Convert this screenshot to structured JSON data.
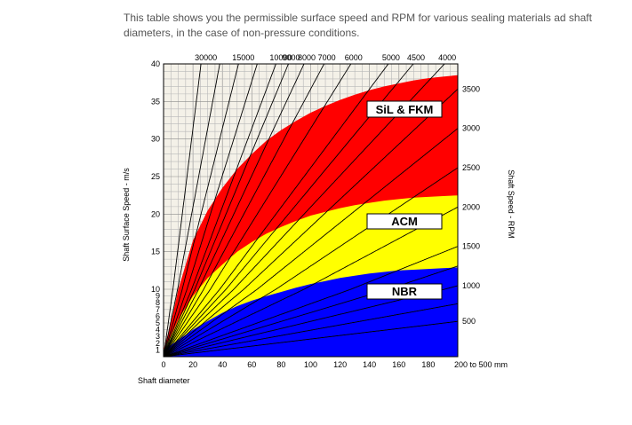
{
  "intro_text": "This table shows you the permissible surface speed and RPM for various sealing materials ad shaft diameters, in the case of non-pressure conditions.",
  "chart_data": {
    "type": "area",
    "xlabel": "Shaft diameter",
    "ylabel": "Shaft Surface Speed - m/s",
    "y2label": "Shaft Speed - RPM",
    "x_ticks": [
      "0",
      "20",
      "40",
      "60",
      "80",
      "100",
      "120",
      "140",
      "160",
      "180",
      "200 to 500 mm"
    ],
    "y_ticks": [
      {
        "label": "1",
        "value": 1
      },
      {
        "label": "2",
        "value": 2
      },
      {
        "label": "3",
        "value": 3
      },
      {
        "label": "4",
        "value": 4
      },
      {
        "label": "5",
        "value": 5
      },
      {
        "label": "6",
        "value": 6
      },
      {
        "label": "7",
        "value": 7
      },
      {
        "label": "8",
        "value": 8
      },
      {
        "label": "9",
        "value": 9
      },
      {
        "label": "10",
        "value": 10
      },
      {
        "label": "15",
        "value": 15
      },
      {
        "label": "20",
        "value": 20
      },
      {
        "label": "25",
        "value": 25
      },
      {
        "label": "30",
        "value": 30
      },
      {
        "label": "35",
        "value": 35
      },
      {
        "label": "40",
        "value": 40
      }
    ],
    "xlim": [
      0,
      200
    ],
    "ylim": [
      0,
      40
    ],
    "grid": true,
    "rpm_lines": [
      {
        "label": "30000",
        "rpm": 30000,
        "labeled": true
      },
      {
        "label": "15000",
        "rpm": 15000,
        "labeled": true
      },
      {
        "label": "10000",
        "rpm": 10000,
        "labeled": true
      },
      {
        "label": "9000",
        "rpm": 9000,
        "labeled": true
      },
      {
        "label": "8000",
        "rpm": 8000,
        "labeled": true
      },
      {
        "label": "7000",
        "rpm": 7000,
        "labeled": true
      },
      {
        "label": "6000",
        "rpm": 6000,
        "labeled": true
      },
      {
        "label": "5000",
        "rpm": 5000,
        "labeled": true
      },
      {
        "label": "4500",
        "rpm": 4500,
        "labeled": true
      },
      {
        "label": "4000",
        "rpm": 4000,
        "labeled": true
      },
      {
        "label": "3500",
        "rpm": 3500,
        "labeled": true
      },
      {
        "label": "3000",
        "rpm": 3000,
        "labeled": true
      },
      {
        "label": "2500",
        "rpm": 2500,
        "labeled": true
      },
      {
        "label": "2000",
        "rpm": 2000,
        "labeled": true
      },
      {
        "label": "1500",
        "rpm": 1500,
        "labeled": true
      },
      {
        "label": "1000",
        "rpm": 1000,
        "labeled": true
      },
      {
        "label": "500",
        "rpm": 500,
        "labeled": true
      },
      {
        "label": "",
        "rpm": 20000,
        "labeled": false
      },
      {
        "label": "",
        "rpm": 12000,
        "labeled": false
      },
      {
        "label": "",
        "rpm": 1250,
        "labeled": false
      },
      {
        "label": "",
        "rpm": 750,
        "labeled": false
      }
    ],
    "bands": [
      {
        "name": "SiL & FKM",
        "color": "#ff0000",
        "limit": [
          [
            0,
            1
          ],
          [
            5,
            5
          ],
          [
            10,
            10
          ],
          [
            20,
            16.5
          ],
          [
            30,
            20.5
          ],
          [
            40,
            23.5
          ],
          [
            50,
            26
          ],
          [
            60,
            28
          ],
          [
            70,
            29.8
          ],
          [
            80,
            31.2
          ],
          [
            90,
            32.4
          ],
          [
            100,
            33.5
          ],
          [
            110,
            34.4
          ],
          [
            120,
            35.2
          ],
          [
            130,
            35.9
          ],
          [
            140,
            36.5
          ],
          [
            150,
            37
          ],
          [
            160,
            37.4
          ],
          [
            170,
            37.8
          ],
          [
            180,
            38.1
          ],
          [
            190,
            38.3
          ],
          [
            200,
            38.5
          ]
        ]
      },
      {
        "name": "ACM",
        "color": "#ffff00",
        "limit": [
          [
            0,
            1
          ],
          [
            5,
            3
          ],
          [
            10,
            5.5
          ],
          [
            20,
            9
          ],
          [
            30,
            11.5
          ],
          [
            40,
            13.3
          ],
          [
            50,
            15
          ],
          [
            60,
            16.3
          ],
          [
            70,
            17.4
          ],
          [
            80,
            18.3
          ],
          [
            90,
            19.1
          ],
          [
            100,
            19.8
          ],
          [
            110,
            20.3
          ],
          [
            120,
            20.8
          ],
          [
            130,
            21.2
          ],
          [
            140,
            21.5
          ],
          [
            150,
            21.8
          ],
          [
            160,
            22
          ],
          [
            170,
            22.2
          ],
          [
            180,
            22.3
          ],
          [
            190,
            22.4
          ],
          [
            200,
            22.5
          ]
        ]
      },
      {
        "name": "NBR",
        "color": "#0000ff",
        "limit": [
          [
            0,
            1
          ],
          [
            5,
            1.7
          ],
          [
            10,
            2.5
          ],
          [
            20,
            4
          ],
          [
            30,
            5.3
          ],
          [
            40,
            6.5
          ],
          [
            50,
            7.5
          ],
          [
            60,
            8.3
          ],
          [
            70,
            9
          ],
          [
            80,
            9.6
          ],
          [
            90,
            10.2
          ],
          [
            100,
            10.7
          ],
          [
            110,
            11.1
          ],
          [
            120,
            11.5
          ],
          [
            130,
            11.8
          ],
          [
            140,
            12.1
          ],
          [
            150,
            12.3
          ],
          [
            160,
            12.5
          ],
          [
            170,
            12.6
          ],
          [
            180,
            12.7
          ],
          [
            190,
            12.8
          ],
          [
            200,
            12.9
          ]
        ]
      }
    ],
    "band_labels": [
      {
        "text": "SiL & FKM",
        "band": "SiL & FKM"
      },
      {
        "text": "ACM",
        "band": "ACM"
      },
      {
        "text": "NBR",
        "band": "NBR"
      }
    ]
  }
}
